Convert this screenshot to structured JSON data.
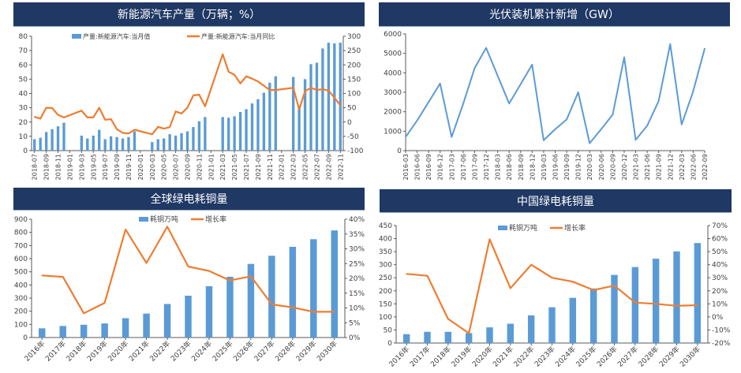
{
  "panels": [
    {
      "title": "新能源汽车产量（万辆；%）"
    },
    {
      "title": "光伏装机累计新增（GW）"
    },
    {
      "title": "全球绿电耗铜量"
    },
    {
      "title": "中国绿电耗铜量"
    }
  ],
  "colors": {
    "header": "#1f3864",
    "bar": "#5b9bd5",
    "line": "#ed7d31"
  },
  "chart_data": [
    {
      "type": "bar+line",
      "title": "新能源汽车产量（万辆；%）",
      "categories": [
        "2018-07",
        "2018-08",
        "2018-09",
        "2018-10",
        "2018-11",
        "2018-12",
        "2019-01",
        "2019-02",
        "2019-03",
        "2019-04",
        "2019-05",
        "2019-06",
        "2019-07",
        "2019-08",
        "2019-09",
        "2019-10",
        "2019-11",
        "2019-12",
        "2020-01",
        "2020-02",
        "2020-03",
        "2020-04",
        "2020-05",
        "2020-06",
        "2020-07",
        "2020-08",
        "2020-09",
        "2020-10",
        "2020-11",
        "2020-12",
        "2021-01",
        "2021-02",
        "2021-03",
        "2021-04",
        "2021-05",
        "2021-06",
        "2021-07",
        "2021-08",
        "2021-09",
        "2021-10",
        "2021-11",
        "2021-12",
        "2022-01",
        "2022-02",
        "2022-03",
        "2022-04",
        "2022-05",
        "2022-06",
        "2022-07",
        "2022-08",
        "2022-09",
        "2022-10",
        "2022-11"
      ],
      "series": [
        {
          "name": "产量:新能源汽车:当月值",
          "type": "bar",
          "axis": "left",
          "values": [
            8,
            9,
            13,
            15,
            17,
            19.5,
            null,
            null,
            10.5,
            8.5,
            10.5,
            14.5,
            8,
            10,
            9.5,
            8.5,
            9.5,
            13.5,
            null,
            null,
            6,
            8,
            8.5,
            11.5,
            10.5,
            12.2,
            13.5,
            16.5,
            20.5,
            23.5,
            null,
            null,
            23.5,
            23,
            24,
            27,
            29,
            33,
            36,
            40.5,
            47.5,
            52,
            null,
            null,
            51.5,
            31.5,
            50,
            60.5,
            61.5,
            71.5,
            75.5,
            75,
            75.5
          ]
        },
        {
          "name": "产量:新能源汽车:当月同比",
          "type": "line",
          "axis": "right",
          "values": [
            18,
            12,
            50,
            49,
            25,
            16,
            null,
            null,
            40,
            16,
            16,
            50,
            8,
            10,
            -25,
            -38,
            -40,
            -27,
            null,
            null,
            -43,
            -17,
            -23,
            -18,
            37,
            30,
            50,
            93,
            96,
            55,
            null,
            null,
            237,
            176,
            165,
            135,
            160,
            152,
            142,
            127,
            112,
            112,
            null,
            null,
            120,
            44,
            108,
            120,
            112,
            115,
            110,
            85,
            58
          ]
        }
      ],
      "y_left": {
        "min": 0,
        "max": 80,
        "ticks": [
          0,
          10,
          20,
          30,
          40,
          50,
          60,
          70,
          80
        ]
      },
      "y_right": {
        "min": -100,
        "max": 300,
        "ticks": [
          -100,
          -50,
          0,
          50,
          100,
          150,
          200,
          250,
          300
        ]
      },
      "legend": "top"
    },
    {
      "type": "line",
      "title": "光伏装机累计新增（GW）",
      "categories": [
        "2016-03",
        "2016-06",
        "2016-09",
        "2016-12",
        "2017-03",
        "2017-06",
        "2017-09",
        "2017-12",
        "2018-03",
        "2018-06",
        "2018-09",
        "2018-12",
        "2019-03",
        "2019-06",
        "2019-09",
        "2019-12",
        "2020-03",
        "2020-06",
        "2020-09",
        "2020-12",
        "2021-03",
        "2021-06",
        "2021-09",
        "2021-12",
        "2022-03",
        "2022-06",
        "2022-09"
      ],
      "series": [
        {
          "values": [
            700,
            1550,
            2500,
            3450,
            700,
            2400,
            4250,
            5280,
            3850,
            2420,
            3420,
            4420,
            530,
            1100,
            1600,
            3000,
            380,
            1100,
            1850,
            4800,
            550,
            1280,
            2550,
            5480,
            1340,
            3050,
            5250
          ]
        }
      ],
      "y_left": {
        "min": 0,
        "max": 6000,
        "ticks": [
          0,
          1000,
          2000,
          3000,
          4000,
          5000,
          6000
        ]
      }
    },
    {
      "type": "bar+line",
      "title": "全球绿电耗铜量",
      "categories": [
        "2016年",
        "2017年",
        "2018年",
        "2019年",
        "2020年",
        "2021年",
        "2022年",
        "2023年",
        "2024年",
        "2025年",
        "2026年",
        "2027年",
        "2028年",
        "2029年",
        "2030年"
      ],
      "series": [
        {
          "name": "耗铜万吨",
          "type": "bar",
          "axis": "left",
          "values": [
            70,
            88,
            97,
            107,
            147,
            182,
            255,
            318,
            390,
            462,
            560,
            622,
            690,
            748,
            815
          ]
        },
        {
          "name": "增长率",
          "type": "line",
          "axis": "right",
          "values": [
            21,
            20.5,
            8.2,
            11.7,
            36.5,
            25.2,
            37.5,
            24,
            22.5,
            19.3,
            20.7,
            11.2,
            10.2,
            8.7,
            8.7
          ]
        }
      ],
      "y_left": {
        "min": 0,
        "max": 900,
        "ticks": [
          0,
          100,
          200,
          300,
          400,
          500,
          600,
          700,
          800,
          900
        ]
      },
      "y_right": {
        "min": 0,
        "max": 40,
        "ticks": [
          0,
          5,
          10,
          15,
          20,
          25,
          30,
          35,
          40
        ],
        "unit": "%"
      },
      "legend": "top"
    },
    {
      "type": "bar+line",
      "title": "中国绿电耗铜量",
      "categories": [
        "2016年",
        "2017年",
        "2018年",
        "2019年",
        "2020年",
        "2021年",
        "2022年",
        "2023年",
        "2024年",
        "2025年",
        "2026年",
        "2027年",
        "2028年",
        "2029年",
        "2030年"
      ],
      "series": [
        {
          "name": "耗铜万吨",
          "type": "bar",
          "axis": "left",
          "values": [
            34,
            43,
            43,
            38,
            60,
            74,
            106,
            137,
            173,
            209,
            261,
            291,
            323,
            351,
            383
          ]
        },
        {
          "name": "增长率",
          "type": "line",
          "axis": "right",
          "values": [
            33,
            31.5,
            -1.5,
            -12.5,
            59.5,
            22,
            40,
            30,
            27,
            20.5,
            24,
            11,
            10,
            8.5,
            9
          ]
        }
      ],
      "y_left": {
        "min": 0,
        "max": 450,
        "ticks": [
          0,
          50,
          100,
          150,
          200,
          250,
          300,
          350,
          400,
          450
        ]
      },
      "y_right": {
        "min": -20,
        "max": 70,
        "ticks": [
          -20,
          -10,
          0,
          10,
          20,
          30,
          40,
          50,
          60,
          70
        ],
        "unit": "%"
      },
      "legend": "top"
    }
  ]
}
